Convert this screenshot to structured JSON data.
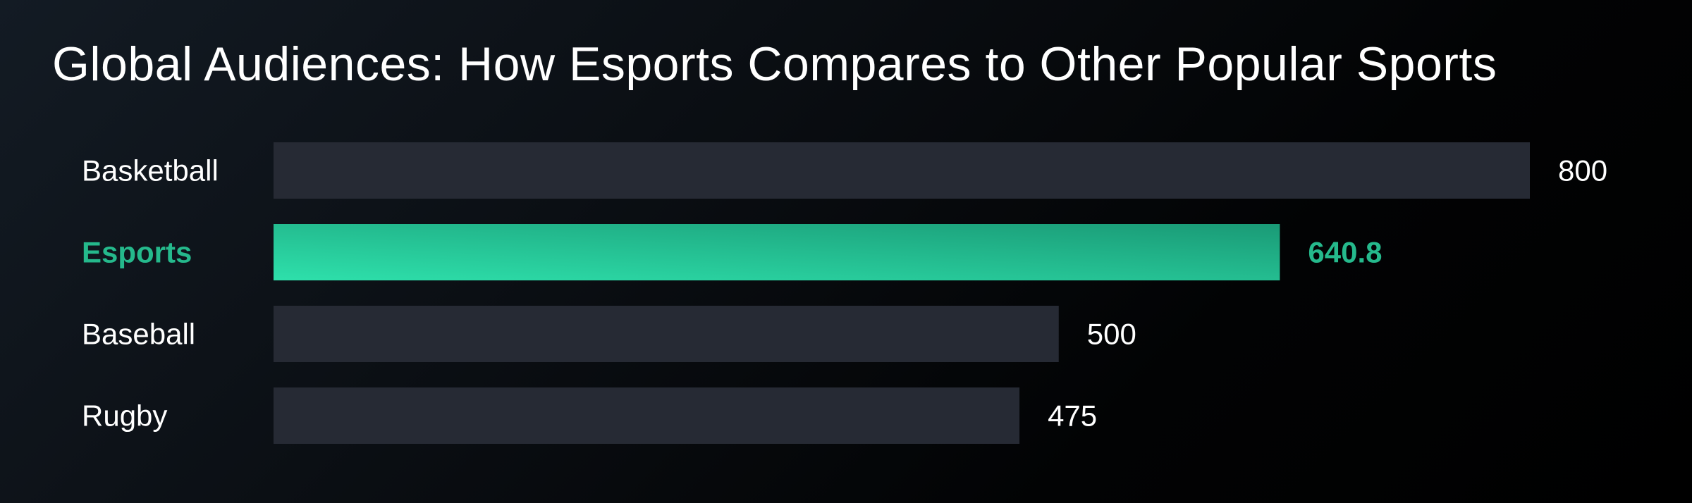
{
  "chart_data": {
    "type": "bar",
    "orientation": "horizontal",
    "title": "Global Audiences: How Esports Compares to Other Popular Sports",
    "categories": [
      "Basketball",
      "Esports",
      "Baseball",
      "Rugby"
    ],
    "values": [
      800,
      640.8,
      500,
      475
    ],
    "value_labels": [
      "800",
      "640.8",
      "500",
      "475"
    ],
    "highlight": "Esports",
    "xlim": [
      0,
      800
    ],
    "grid": false,
    "legend": "none",
    "colors": {
      "bar": "#262a34",
      "highlight_start": "#2ee0ab",
      "highlight_end": "#1a9a76",
      "highlight_text": "#25b98c",
      "text": "#ffffff"
    }
  }
}
